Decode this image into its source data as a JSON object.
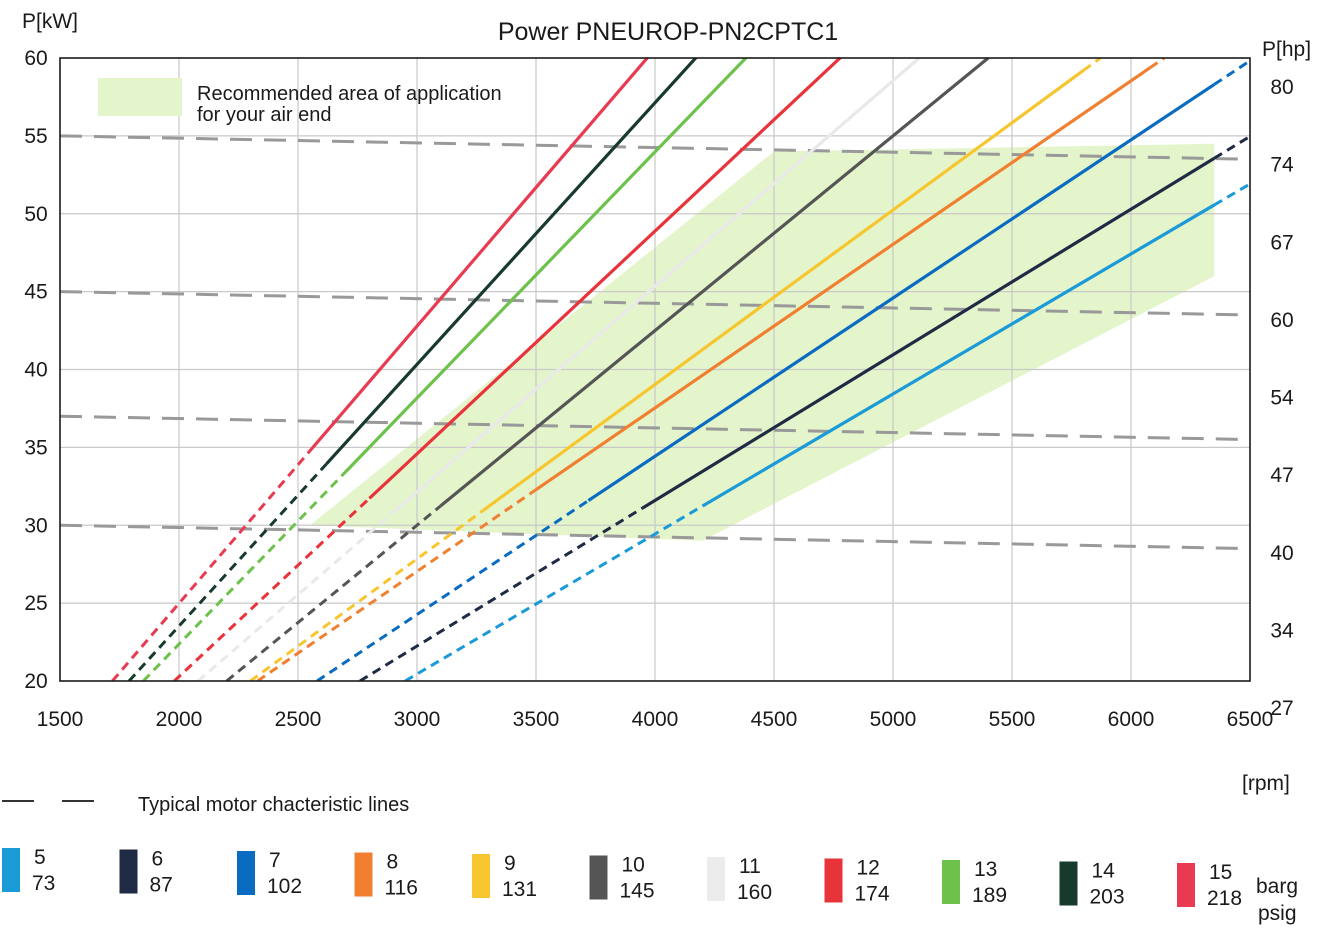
{
  "chart_data": {
    "type": "line",
    "title": "Power PNEUROP-PN2CPTC1",
    "ylabel": "P[kW]",
    "ylabel_right": "P[hp]",
    "xlabel": "[rpm]",
    "xlim": [
      1500,
      6500
    ],
    "ylim": [
      20,
      60
    ],
    "x_ticks": [
      "1500",
      "2000",
      "2500",
      "3000",
      "3500",
      "4000",
      "4500",
      "5000",
      "5500",
      "6000",
      "6500"
    ],
    "y_ticks": [
      "20",
      "25",
      "30",
      "35",
      "40",
      "45",
      "50",
      "55",
      "60"
    ],
    "y_right_ticks": [
      "27",
      "34",
      "40",
      "47",
      "54",
      "60",
      "67",
      "74",
      "80"
    ],
    "grid": true,
    "recommended_area": {
      "label_line1": "Recommended area of application",
      "label_line2": "for  your air end",
      "color": "#e4f5cc",
      "polygon": [
        [
          2550,
          30
        ],
        [
          4200,
          29
        ],
        [
          6350,
          46
        ],
        [
          6350,
          54.5
        ],
        [
          4500,
          54
        ],
        [
          2550,
          30
        ]
      ]
    },
    "motor_lines": {
      "label": "Typical motor chacteristic lines",
      "color": "#999999",
      "lines": [
        {
          "start": [
            1500,
            55
          ],
          "end": [
            6500,
            53.5
          ]
        },
        {
          "start": [
            1500,
            45
          ],
          "end": [
            6500,
            43.5
          ]
        },
        {
          "start": [
            1500,
            37
          ],
          "end": [
            6500,
            35.5
          ]
        },
        {
          "start": [
            1500,
            30
          ],
          "end": [
            6500,
            28.5
          ]
        }
      ]
    },
    "legend_units": {
      "top": "barg",
      "bottom": "psig"
    },
    "series": [
      {
        "barg": "5",
        "psig": "73",
        "color": "#1a9ad6",
        "x0": 2950,
        "slope": 0.00899,
        "solid_start": 4200,
        "solid_end": 6350
      },
      {
        "barg": "6",
        "psig": "87",
        "color": "#1f2a44",
        "x0": 2760,
        "slope": 0.00935,
        "solid_start": 3950,
        "solid_end": 6350
      },
      {
        "barg": "7",
        "psig": "102",
        "color": "#0a6cc0",
        "x0": 2580,
        "slope": 0.01016,
        "solid_start": 3720,
        "solid_end": 6350
      },
      {
        "barg": "8",
        "psig": "116",
        "color": "#f08030",
        "x0": 2330,
        "slope": 0.0105,
        "solid_start": 3500,
        "solid_end": 6080
      },
      {
        "barg": "9",
        "psig": "131",
        "color": "#f7c62f",
        "x0": 2300,
        "slope": 0.0112,
        "solid_start": 3280,
        "solid_end": 5800
      },
      {
        "barg": "10",
        "psig": "145",
        "color": "#555555",
        "x0": 2200,
        "slope": 0.0125,
        "solid_start": 3100,
        "solid_end": 5400
      },
      {
        "barg": "11",
        "psig": "160",
        "color": "#e9e9e9",
        "x0": 2080,
        "slope": 0.0132,
        "solid_start": 2900,
        "solid_end": 5100
      },
      {
        "barg": "12",
        "psig": "174",
        "color": "#e8333a",
        "x0": 1980,
        "slope": 0.0143,
        "solid_start": 2800,
        "solid_end": 5050
      },
      {
        "barg": "13",
        "psig": "189",
        "color": "#6cc24a",
        "x0": 1850,
        "slope": 0.0158,
        "solid_start": 2700,
        "solid_end": 4680
      },
      {
        "barg": "14",
        "psig": "203",
        "color": "#173a2c",
        "x0": 1790,
        "slope": 0.0168,
        "solid_start": 2620,
        "solid_end": 4580
      },
      {
        "barg": "15",
        "psig": "218",
        "color": "#e83a50",
        "x0": 1720,
        "slope": 0.0178,
        "solid_start": 2550,
        "solid_end": 4500
      }
    ]
  }
}
